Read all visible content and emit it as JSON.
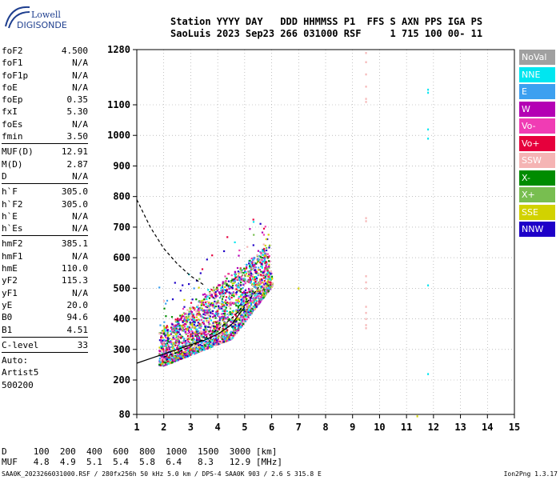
{
  "logo": {
    "line1": "Lowell",
    "line2": "DIGISONDE"
  },
  "header": {
    "row1": "Station YYYY DAY   DDD HHMMSS P1  FFS S AXN PPS IGA PS",
    "row2": "SaoLuis 2023 Sep23 266 031000 RSF     1 715 100 00- 11"
  },
  "params": {
    "group1": [
      {
        "k": "foF2",
        "v": "4.500"
      },
      {
        "k": "foF1",
        "v": "N/A"
      },
      {
        "k": "foF1p",
        "v": "N/A"
      },
      {
        "k": "foE",
        "v": "N/A"
      },
      {
        "k": "foEp",
        "v": "0.35"
      },
      {
        "k": "fxI",
        "v": "5.30"
      },
      {
        "k": "foEs",
        "v": "N/A"
      },
      {
        "k": "fmin",
        "v": "3.50"
      }
    ],
    "group2": [
      {
        "k": "MUF(D)",
        "v": "12.91"
      },
      {
        "k": "M(D)",
        "v": "2.87"
      },
      {
        "k": "D",
        "v": "N/A"
      }
    ],
    "group3": [
      {
        "k": "h`F",
        "v": "305.0"
      },
      {
        "k": "h`F2",
        "v": "305.0"
      },
      {
        "k": "h`E",
        "v": "N/A"
      },
      {
        "k": "h`Es",
        "v": "N/A"
      }
    ],
    "group4": [
      {
        "k": "hmF2",
        "v": "385.1"
      },
      {
        "k": "hmF1",
        "v": "N/A"
      },
      {
        "k": "hmE",
        "v": "110.0"
      },
      {
        "k": "yF2",
        "v": "115.3"
      },
      {
        "k": "yF1",
        "v": "N/A"
      },
      {
        "k": "yE",
        "v": "20.0"
      },
      {
        "k": "B0",
        "v": "94.6"
      },
      {
        "k": "B1",
        "v": "4.51"
      }
    ],
    "clevel": {
      "k": "C-level",
      "v": "33"
    },
    "auto": "Auto:",
    "artist": "Artist5",
    "code": "500200"
  },
  "legend": [
    {
      "label": "NoVal",
      "color": "#a0a0a0"
    },
    {
      "label": "NNE",
      "color": "#00e6f0"
    },
    {
      "label": "E",
      "color": "#3ca0f0"
    },
    {
      "label": "W",
      "color": "#b400b4"
    },
    {
      "label": "Vo-",
      "color": "#f03cb4"
    },
    {
      "label": "Vo+",
      "color": "#e6003c"
    },
    {
      "label": "SSW",
      "color": "#f5b4b4"
    },
    {
      "label": "X-",
      "color": "#008c00"
    },
    {
      "label": "X+",
      "color": "#78be50"
    },
    {
      "label": "SSE",
      "color": "#d2d200"
    },
    {
      "label": "NNW",
      "color": "#1e00c8"
    }
  ],
  "bottom": {
    "row1": "D     100  200  400  600  800  1000  1500  3000 [km]",
    "row2": "MUF   4.8  4.9  5.1  5.4  5.8  6.4   8.3   12.9 [MHz]"
  },
  "footer": {
    "left": "SAA0K_2023266031000.RSF / 280fx256h 50 kHz 5.0 km / DPS-4 SAA0K 903 / 2.6 S 315.8 E",
    "right": "Ion2Png 1.3.17"
  },
  "chart_data": {
    "type": "scatter",
    "xlabel": "",
    "ylabel": "",
    "xlim": [
      1,
      15
    ],
    "ylim": [
      80,
      1280
    ],
    "x_ticks": [
      1,
      2,
      3,
      4,
      5,
      6,
      7,
      8,
      9,
      10,
      11,
      12,
      13,
      14,
      15
    ],
    "y_ticks": [
      80,
      200,
      300,
      400,
      500,
      600,
      700,
      800,
      900,
      1000,
      1100,
      1280
    ],
    "grid": "dotted",
    "point_cloud": {
      "f_range": [
        1.8,
        6.0
      ],
      "h_range": [
        250,
        750
      ],
      "description_colors": "mixed legend colors"
    },
    "isolated_points": [
      {
        "x": 9.5,
        "y": [
          1270,
          1240,
          1200,
          1160,
          1120,
          1110,
          730,
          720,
          540,
          520,
          500,
          440,
          420,
          400,
          380,
          370
        ],
        "color": "#f5b4b4"
      },
      {
        "x": 11.8,
        "y": [
          1150,
          1140,
          1020,
          990,
          510,
          220
        ],
        "color": "#00e6f0"
      },
      {
        "x": 7.0,
        "y": [
          500
        ],
        "color": "#d2d200"
      },
      {
        "x": 11.4,
        "y": [
          82
        ],
        "color": "#d2d200"
      }
    ],
    "curves": [
      {
        "name": "",
        "style": "dashed",
        "x": [
          1.0,
          1.5,
          2.0,
          2.5,
          3.0,
          3.5
        ],
        "y": [
          790,
          700,
          630,
          580,
          540,
          510
        ]
      },
      {
        "name": "",
        "style": "solid",
        "x": [
          1.0,
          1.5,
          2.0,
          2.5,
          3.0,
          3.5,
          4.0,
          4.5,
          5.0
        ],
        "y": [
          255,
          270,
          285,
          300,
          315,
          330,
          350,
          380,
          440
        ]
      },
      {
        "name": "",
        "style": "dashed",
        "x": [
          2.0,
          2.5,
          3.0,
          3.5,
          4.0,
          4.5,
          5.0,
          5.5
        ],
        "y": [
          275,
          290,
          310,
          335,
          365,
          400,
          445,
          500
        ]
      }
    ]
  }
}
